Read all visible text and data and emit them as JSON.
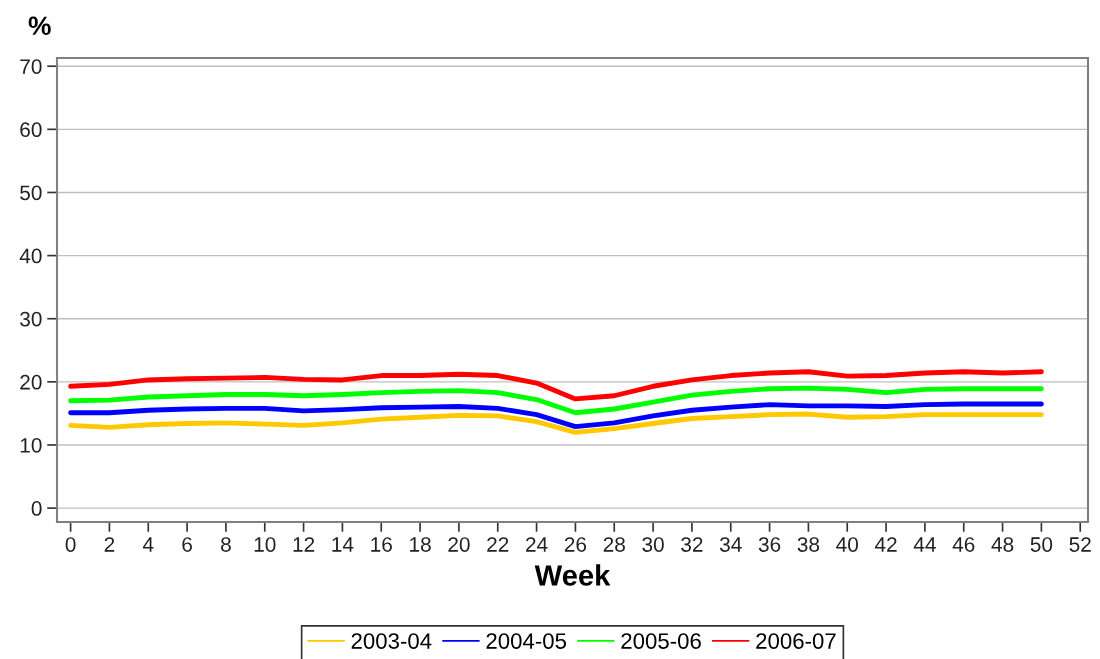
{
  "chart_data": {
    "type": "line",
    "ylabel": "%",
    "xlabel": "Week",
    "x": [
      0,
      2,
      4,
      6,
      8,
      10,
      12,
      14,
      16,
      18,
      20,
      22,
      24,
      26,
      28,
      30,
      32,
      34,
      36,
      38,
      40,
      42,
      44,
      46,
      48,
      50
    ],
    "series": [
      {
        "name": "2003-04",
        "color": "#ffc800",
        "values": [
          13.1,
          12.8,
          13.2,
          13.4,
          13.5,
          13.3,
          13.1,
          13.5,
          14.1,
          14.4,
          14.7,
          14.6,
          13.7,
          12.0,
          12.6,
          13.4,
          14.2,
          14.5,
          14.8,
          14.9,
          14.4,
          14.5,
          14.8,
          14.8,
          14.8,
          14.8
        ]
      },
      {
        "name": "2004-05",
        "color": "#0000ff",
        "values": [
          15.1,
          15.1,
          15.5,
          15.7,
          15.8,
          15.8,
          15.4,
          15.6,
          15.9,
          16.0,
          16.1,
          15.8,
          14.8,
          12.9,
          13.5,
          14.6,
          15.5,
          16.0,
          16.4,
          16.2,
          16.2,
          16.1,
          16.4,
          16.5,
          16.5,
          16.5
        ]
      },
      {
        "name": "2005-06",
        "color": "#00ff00",
        "values": [
          17.0,
          17.1,
          17.6,
          17.8,
          18.0,
          18.0,
          17.8,
          18.0,
          18.3,
          18.5,
          18.6,
          18.3,
          17.2,
          15.1,
          15.7,
          16.8,
          17.9,
          18.5,
          18.9,
          19.0,
          18.8,
          18.3,
          18.8,
          18.9,
          18.9,
          18.9
        ]
      },
      {
        "name": "2006-07",
        "color": "#ff0000",
        "values": [
          19.3,
          19.6,
          20.3,
          20.5,
          20.6,
          20.7,
          20.4,
          20.3,
          21.0,
          21.0,
          21.2,
          21.0,
          19.8,
          17.3,
          17.8,
          19.3,
          20.3,
          21.0,
          21.4,
          21.6,
          20.9,
          21.0,
          21.4,
          21.6,
          21.4,
          21.6
        ]
      }
    ],
    "xlim": [
      -0.7,
      52.4
    ],
    "ylim": [
      -2.2,
      71.3
    ],
    "xticks": [
      0,
      2,
      4,
      6,
      8,
      10,
      12,
      14,
      16,
      18,
      20,
      22,
      24,
      26,
      28,
      30,
      32,
      34,
      36,
      38,
      40,
      42,
      44,
      46,
      48,
      50,
      52
    ],
    "yticks": [
      0,
      10,
      20,
      30,
      40,
      50,
      60,
      70
    ],
    "grid": "y",
    "legend": "bottom",
    "marker": "none",
    "line_style": "solid"
  }
}
